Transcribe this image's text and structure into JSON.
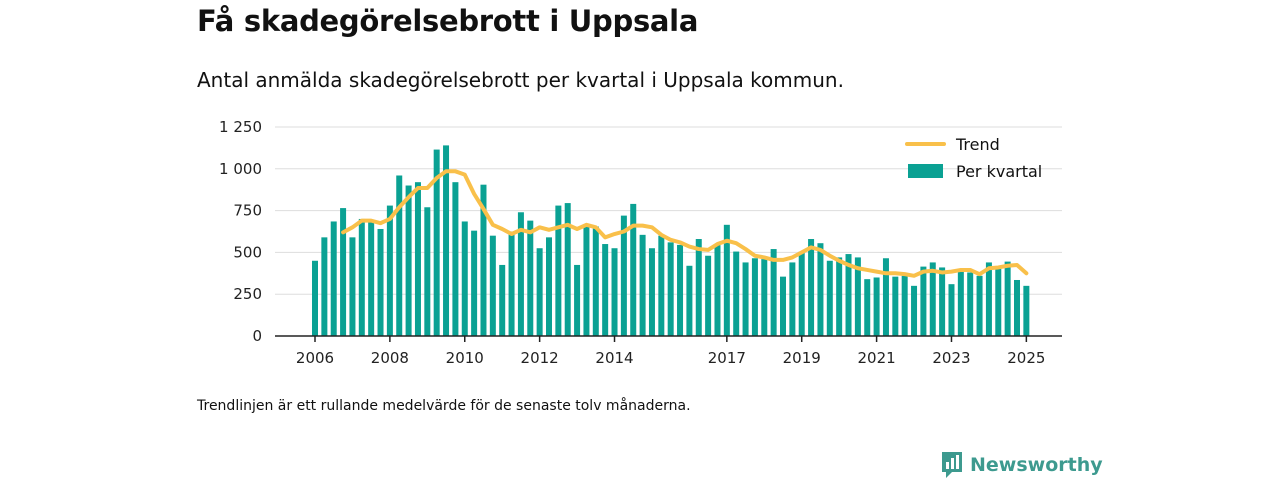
{
  "title": "Få skadegörelsebrott i Uppsala",
  "subtitle": "Antal anmälda skadegörelsebrott per kvartal i Uppsala kommun.",
  "footnote": "Trendlinjen är ett rullande medelvärde för de senaste tolv månaderna.",
  "brand": {
    "name": "Newsworthy",
    "icon": "newsworthy-logo-icon"
  },
  "colors": {
    "bars": "#0aa193",
    "trend": "#f9c04a",
    "grid": "#dddddd",
    "axis": "#222222"
  },
  "chart_data": {
    "type": "bar",
    "title": "",
    "xlabel": "",
    "ylabel": "",
    "ylim": [
      0,
      1250
    ],
    "y_ticks": [
      0,
      250,
      500,
      750,
      1000,
      1250
    ],
    "y_tick_labels": [
      "0",
      "250",
      "500",
      "750",
      "1 000",
      "1 250"
    ],
    "x_ticks": [
      "2006",
      "2008",
      "2010",
      "2012",
      "2014",
      "2017",
      "2019",
      "2021",
      "2023",
      "2025"
    ],
    "grid": true,
    "legend_position": "top-right",
    "legend": [
      "Trend",
      "Per kvartal"
    ],
    "categories": [
      "2006 K1",
      "2006 K2",
      "2006 K3",
      "2006 K4",
      "2007 K1",
      "2007 K2",
      "2007 K3",
      "2007 K4",
      "2008 K1",
      "2008 K2",
      "2008 K3",
      "2008 K4",
      "2009 K1",
      "2009 K2",
      "2009 K3",
      "2009 K4",
      "2010 K1",
      "2010 K2",
      "2010 K3",
      "2010 K4",
      "2011 K1",
      "2011 K2",
      "2011 K3",
      "2011 K4",
      "2012 K1",
      "2012 K2",
      "2012 K3",
      "2012 K4",
      "2013 K1",
      "2013 K2",
      "2013 K3",
      "2013 K4",
      "2014 K1",
      "2014 K2",
      "2014 K3",
      "2014 K4",
      "2015 K1",
      "2015 K2",
      "2015 K3",
      "2015 K4",
      "2016 K1",
      "2016 K2",
      "2016 K3",
      "2016 K4",
      "2017 K1",
      "2017 K2",
      "2017 K3",
      "2017 K4",
      "2018 K1",
      "2018 K2",
      "2018 K3",
      "2018 K4",
      "2019 K1",
      "2019 K2",
      "2019 K3",
      "2019 K4",
      "2020 K1",
      "2020 K2",
      "2020 K3",
      "2020 K4",
      "2021 K1",
      "2021 K2",
      "2021 K3",
      "2021 K4",
      "2022 K1",
      "2022 K2",
      "2022 K3",
      "2022 K4",
      "2023 K1",
      "2023 K2",
      "2023 K3",
      "2023 K4",
      "2024 K1",
      "2024 K2",
      "2024 K3",
      "2024 K4",
      "2025 K1"
    ],
    "series": [
      {
        "name": "Per kvartal",
        "type": "bar",
        "values": [
          450,
          590,
          685,
          765,
          590,
          700,
          680,
          640,
          780,
          960,
          900,
          920,
          770,
          1115,
          1140,
          920,
          685,
          630,
          905,
          600,
          425,
          625,
          740,
          690,
          525,
          590,
          780,
          795,
          425,
          660,
          655,
          550,
          525,
          720,
          790,
          605,
          525,
          600,
          560,
          545,
          420,
          580,
          480,
          550,
          665,
          505,
          440,
          465,
          460,
          520,
          355,
          440,
          505,
          580,
          555,
          450,
          470,
          490,
          470,
          340,
          350,
          465,
          355,
          360,
          300,
          415,
          440,
          410,
          310,
          390,
          380,
          360,
          440,
          415,
          445,
          335,
          300
        ]
      },
      {
        "name": "Trend",
        "type": "line",
        "values": [
          null,
          null,
          null,
          620,
          650,
          690,
          690,
          675,
          700,
          770,
          830,
          885,
          885,
          945,
          985,
          985,
          965,
          850,
          760,
          665,
          640,
          610,
          635,
          620,
          650,
          635,
          650,
          665,
          640,
          665,
          650,
          590,
          610,
          625,
          660,
          660,
          650,
          605,
          575,
          560,
          535,
          520,
          515,
          550,
          570,
          555,
          520,
          480,
          470,
          455,
          455,
          470,
          500,
          530,
          515,
          480,
          450,
          425,
          405,
          395,
          385,
          375,
          375,
          370,
          360,
          385,
          390,
          380,
          385,
          395,
          395,
          370,
          405,
          410,
          420,
          425,
          375
        ]
      }
    ]
  }
}
